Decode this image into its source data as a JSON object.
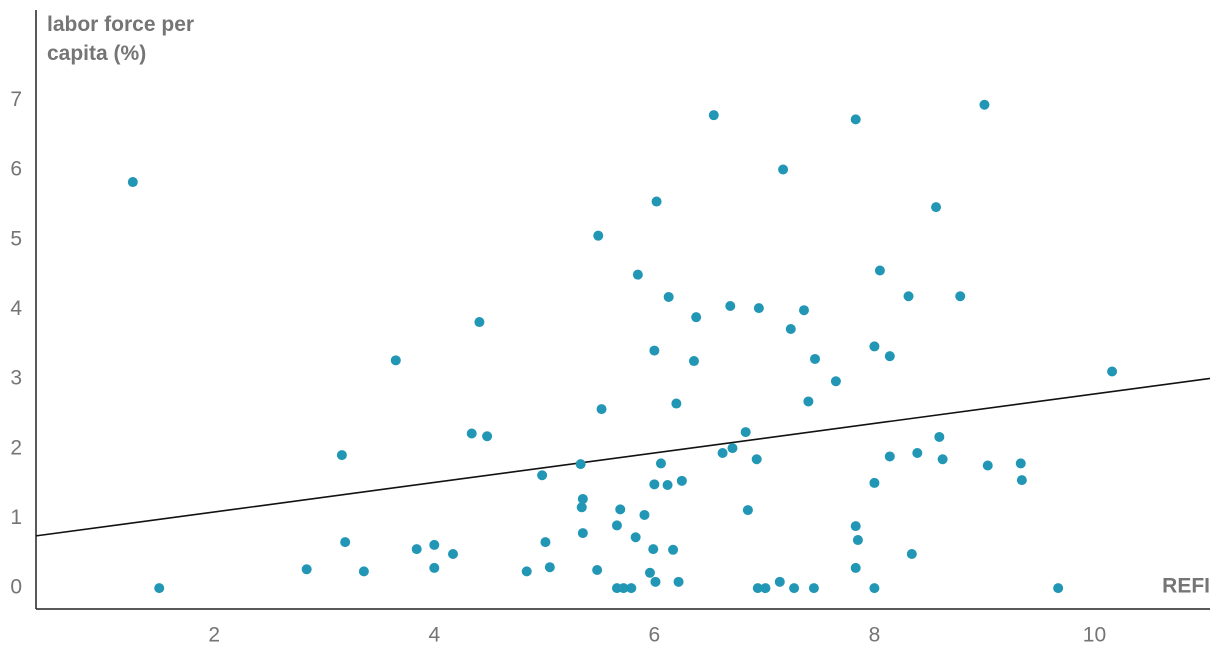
{
  "chart_data": {
    "type": "scatter",
    "y_label": "labor force per capita (%)",
    "x_label": "REFI",
    "xlim": [
      0.38,
      11.05
    ],
    "ylim": [
      -0.3,
      8.3
    ],
    "xticks": [
      2,
      4,
      6,
      8,
      10
    ],
    "yticks": [
      0,
      1,
      2,
      3,
      4,
      5,
      6,
      7
    ],
    "grid": false,
    "color": "#2196b5",
    "trendline": {
      "x": [
        0.38,
        11.05
      ],
      "y": [
        0.75,
        3.01
      ],
      "color": "#111111"
    },
    "x": [
      1.26,
      1.5,
      2.84,
      3.16,
      3.19,
      3.36,
      3.65,
      3.84,
      4.0,
      4.0,
      4.17,
      4.34,
      4.41,
      4.48,
      4.84,
      4.98,
      5.01,
      5.05,
      5.33,
      5.35,
      5.34,
      5.35,
      5.48,
      5.49,
      5.52,
      5.66,
      5.69,
      5.66,
      5.72,
      5.79,
      5.83,
      5.85,
      5.91,
      5.96,
      5.99,
      6.0,
      6.0,
      6.02,
      6.01,
      6.06,
      6.12,
      6.13,
      6.17,
      6.2,
      6.22,
      6.25,
      6.36,
      6.38,
      6.54,
      6.62,
      6.69,
      6.71,
      6.83,
      6.85,
      6.93,
      6.94,
      6.95,
      7.01,
      7.14,
      7.17,
      7.24,
      7.27,
      7.36,
      7.4,
      7.45,
      7.46,
      7.65,
      7.83,
      7.83,
      7.85,
      7.83,
      8.0,
      8.0,
      8.0,
      8.05,
      8.14,
      8.14,
      8.31,
      8.34,
      8.39,
      8.56,
      8.59,
      8.62,
      8.78,
      9.0,
      9.03,
      9.33,
      9.34,
      9.67,
      10.16
    ],
    "values": [
      5.83,
      0,
      0.27,
      1.91,
      0.66,
      0.24,
      3.27,
      0.56,
      0.62,
      0.29,
      0.49,
      2.22,
      3.82,
      2.18,
      0.24,
      1.62,
      0.66,
      0.3,
      1.78,
      1.28,
      1.16,
      0.79,
      0.26,
      5.06,
      2.57,
      0.9,
      1.13,
      0,
      0,
      0,
      0.73,
      4.5,
      1.05,
      0.22,
      0.56,
      1.49,
      3.41,
      5.55,
      0.09,
      1.79,
      1.48,
      4.18,
      0.55,
      2.65,
      0.09,
      1.54,
      3.26,
      3.89,
      6.79,
      1.94,
      4.05,
      2.01,
      2.24,
      1.12,
      1.85,
      0,
      4.02,
      0,
      0.09,
      6.01,
      3.72,
      0,
      3.99,
      2.68,
      0,
      3.29,
      2.97,
      6.73,
      0.89,
      0.69,
      0.29,
      3.47,
      1.51,
      0,
      4.56,
      3.33,
      1.89,
      4.19,
      0.49,
      1.94,
      5.47,
      2.17,
      1.85,
      4.19,
      6.94,
      1.76,
      1.79,
      1.55,
      0,
      3.11
    ]
  }
}
